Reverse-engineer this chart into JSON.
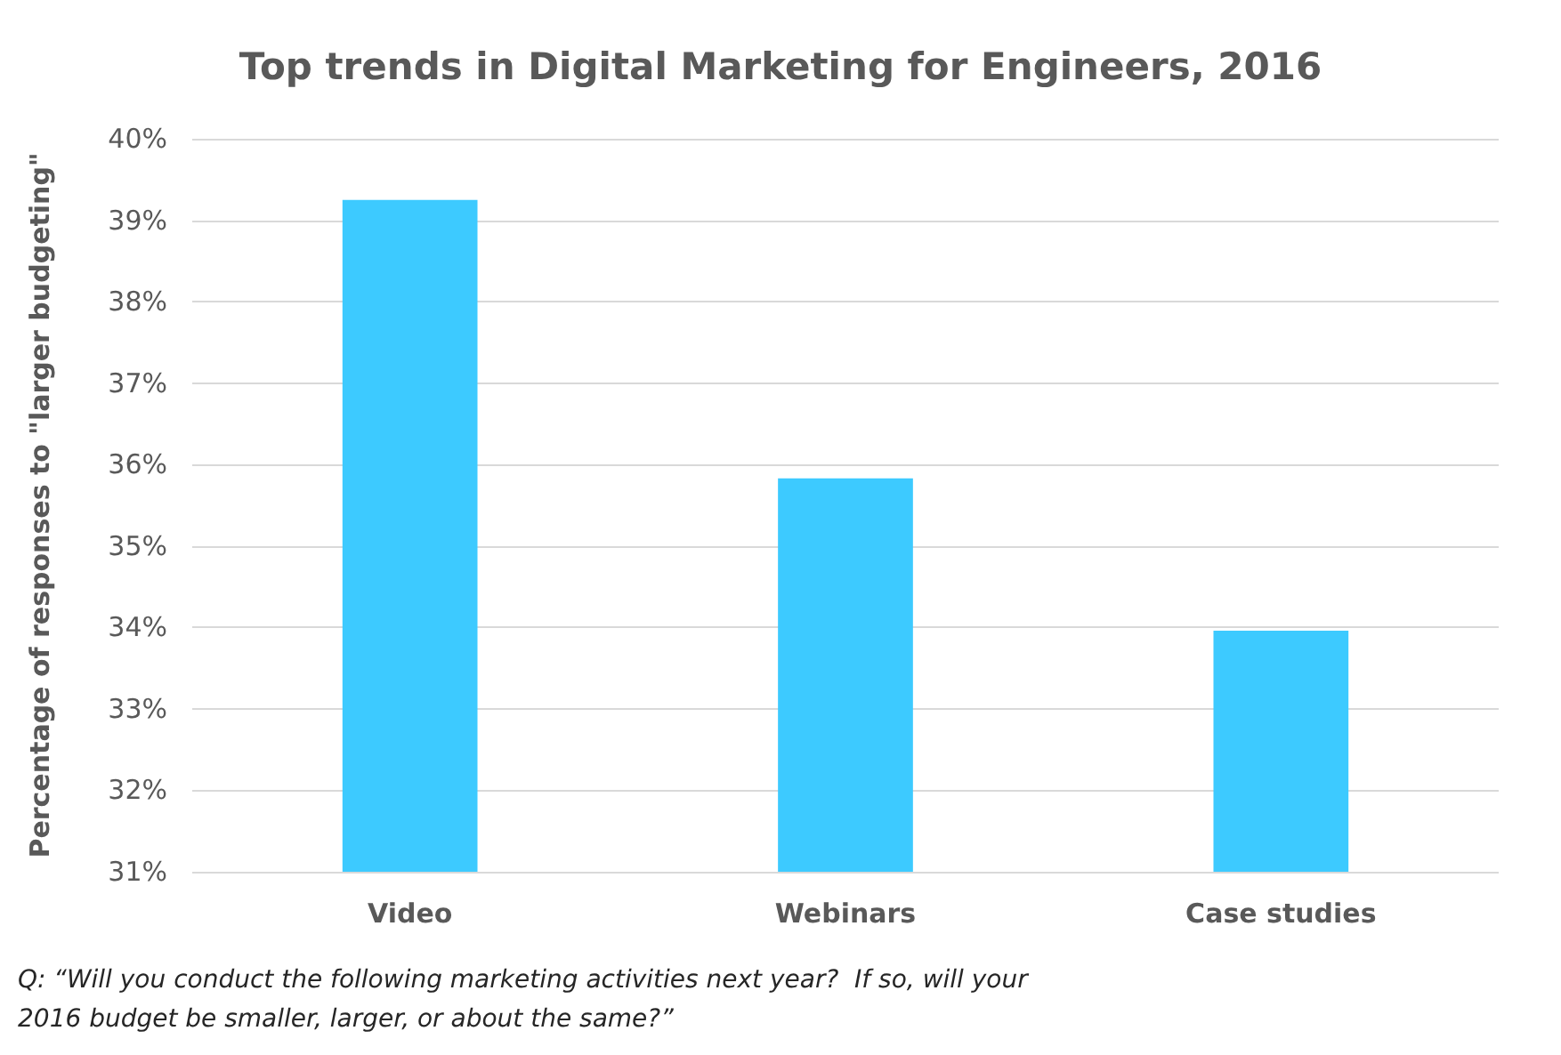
{
  "chart_data": {
    "type": "bar",
    "title": "Top trends in Digital Marketing for Engineers, 2016",
    "ylabel": "Percentage of responses to \"larger budgeting\"",
    "categories": [
      "Video",
      "Webinars",
      "Case studies"
    ],
    "values": [
      39.25,
      35.83,
      33.96
    ],
    "color": "#3dcaff",
    "ylim": [
      31,
      40
    ],
    "yticks": [
      {
        "value": 31,
        "label": "31%"
      },
      {
        "value": 32,
        "label": "32%"
      },
      {
        "value": 33,
        "label": "33%"
      },
      {
        "value": 34,
        "label": "34%"
      },
      {
        "value": 35,
        "label": "35%"
      },
      {
        "value": 36,
        "label": "36%"
      },
      {
        "value": 37,
        "label": "37%"
      },
      {
        "value": 38,
        "label": "38%"
      },
      {
        "value": 39,
        "label": "39%"
      },
      {
        "value": 40,
        "label": "40%"
      }
    ],
    "grid": "y",
    "annotations": [
      "Q: “Will you conduct the following marketing activities next year?  If so, will your 2016 budget be smaller, larger, or about the same?”"
    ]
  }
}
